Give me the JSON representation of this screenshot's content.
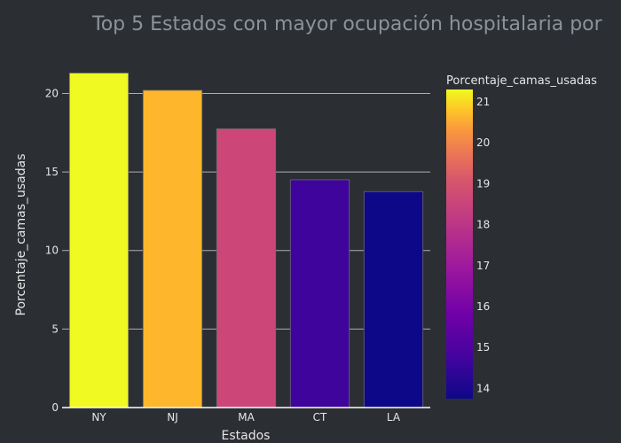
{
  "chart_data": {
    "type": "bar",
    "title": "Top 5 Estados con mayor ocupación hospitalaria por",
    "xlabel": "Estados",
    "ylabel": "Porcentaje_camas_usadas",
    "categories": [
      "NY",
      "NJ",
      "MA",
      "CT",
      "LA"
    ],
    "values": [
      21.3,
      20.2,
      17.75,
      14.5,
      13.75
    ],
    "ylim": [
      0,
      22
    ],
    "yticks": [
      0,
      5,
      10,
      15,
      20
    ],
    "grid": true,
    "colorscale": "Plasma",
    "colorbar": {
      "title": "Porcentaje_camas_usadas",
      "range": [
        13.75,
        21.3
      ],
      "ticks": [
        14,
        15,
        16,
        17,
        18,
        19,
        20,
        21
      ]
    }
  },
  "colors": {
    "background": "#2b2e33",
    "bars": [
      "#f0f921",
      "#feb72d",
      "#cc4778",
      "#3e049c",
      "#0d0887"
    ]
  }
}
